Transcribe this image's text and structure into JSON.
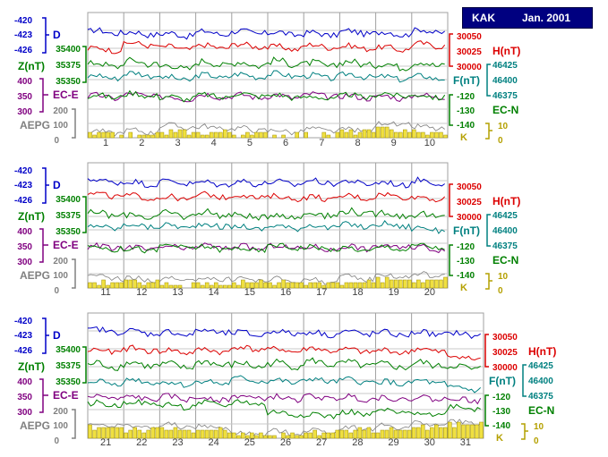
{
  "station": "KAK",
  "period": "Jan. 2001",
  "labels": {
    "d": "D",
    "h": "H(nT)",
    "z": "Z(nT)",
    "f": "F(nT)",
    "ece": "EC-E",
    "ecn": "EC-N",
    "aepg": "AEPG",
    "k": "K"
  },
  "colors": {
    "d": "#0000c8",
    "h": "#dc0000",
    "z": "#008000",
    "f": "#008080",
    "ece": "#800080",
    "ecn": "#008000",
    "aepg": "#808080",
    "k": "#b4a000",
    "kbar": "#f0e040",
    "grid": "#a0a0a0"
  },
  "chart_data": [
    {
      "type": "line",
      "days": [
        "1",
        "2",
        "3",
        "4",
        "5",
        "6",
        "7",
        "8",
        "9",
        "10"
      ],
      "left_axes": {
        "d": [
          "-420",
          "-423",
          "-426"
        ],
        "z": [
          "35400",
          "35375",
          "35350"
        ],
        "ece": [
          "400",
          "350",
          "300"
        ],
        "aepg": [
          "200",
          "100",
          "0"
        ]
      },
      "right_axes": {
        "h": [
          "30050",
          "30025",
          "30000"
        ],
        "f": [
          "46425",
          "46400",
          "46375"
        ],
        "ecn": [
          "-120",
          "-130",
          "-140"
        ],
        "k": [
          "10",
          "0"
        ]
      },
      "series": [
        {
          "key": "d",
          "values": [
            -422.6,
            -422.9,
            -423.1,
            -422.8,
            -422.7,
            -422.9,
            -423.0,
            -422.7,
            -422.9,
            -422.5
          ]
        },
        {
          "key": "h",
          "values": [
            30028,
            30036,
            30030,
            30032,
            30034,
            30030,
            30033,
            30031,
            30029,
            30035
          ]
        },
        {
          "key": "z",
          "values": [
            35381,
            35384,
            35378,
            35383,
            35382,
            35384,
            35381,
            35383,
            35380,
            35382
          ]
        },
        {
          "key": "f",
          "values": [
            46408,
            46412,
            46405,
            46409,
            46410,
            46411,
            46408,
            46410,
            46406,
            46407
          ]
        },
        {
          "key": "ece",
          "values": [
            345,
            350,
            342,
            348,
            347,
            346,
            349,
            345,
            343,
            347
          ]
        },
        {
          "key": "ecn",
          "values": [
            -121,
            -120,
            -122,
            -121,
            -120,
            -121,
            -122,
            -121,
            -120,
            -121
          ]
        },
        {
          "key": "aepg",
          "values": [
            40,
            45,
            80,
            70,
            60,
            45,
            55,
            50,
            95,
            70
          ]
        },
        {
          "key": "k",
          "values": [
            1,
            1,
            2,
            2,
            1,
            1,
            1,
            2,
            3,
            2
          ]
        }
      ]
    },
    {
      "type": "line",
      "days": [
        "11",
        "12",
        "13",
        "14",
        "15",
        "16",
        "17",
        "18",
        "19",
        "20"
      ],
      "left_axes": {
        "d": [
          "-420",
          "-423",
          "-426"
        ],
        "z": [
          "35400",
          "35375",
          "35350"
        ],
        "ece": [
          "400",
          "350",
          "300"
        ],
        "aepg": [
          "200",
          "100",
          "0"
        ]
      },
      "right_axes": {
        "h": [
          "30050",
          "30025",
          "30000"
        ],
        "f": [
          "46425",
          "46400",
          "46375"
        ],
        "ecn": [
          "-120",
          "-130",
          "-140"
        ],
        "k": [
          "10",
          "0"
        ]
      },
      "series": [
        {
          "key": "d",
          "values": [
            -422.4,
            -422.8,
            -422.6,
            -422.9,
            -422.7,
            -422.8,
            -422.6,
            -422.7,
            -422.9,
            -422.5
          ]
        },
        {
          "key": "h",
          "values": [
            30035,
            30032,
            30030,
            30034,
            30033,
            30031,
            30030,
            30032,
            30034,
            30030
          ]
        },
        {
          "key": "z",
          "values": [
            35382,
            35380,
            35381,
            35383,
            35379,
            35380,
            35382,
            35384,
            35382,
            35380
          ]
        },
        {
          "key": "f",
          "values": [
            46408,
            46410,
            46409,
            46411,
            46407,
            46408,
            46409,
            46410,
            46411,
            46405
          ]
        },
        {
          "key": "ece",
          "values": [
            344,
            340,
            342,
            346,
            343,
            345,
            341,
            344,
            346,
            342
          ]
        },
        {
          "key": "ecn",
          "values": [
            -122,
            -123,
            -121,
            -122,
            -123,
            -121,
            -122,
            -123,
            -122,
            -121
          ]
        },
        {
          "key": "aepg",
          "values": [
            75,
            60,
            55,
            65,
            60,
            55,
            50,
            70,
            85,
            90
          ]
        },
        {
          "key": "k",
          "values": [
            2,
            2,
            1,
            2,
            2,
            2,
            2,
            2,
            3,
            3
          ]
        }
      ]
    },
    {
      "type": "line",
      "days": [
        "21",
        "22",
        "23",
        "24",
        "25",
        "26",
        "27",
        "28",
        "29",
        "30",
        "31"
      ],
      "left_axes": {
        "d": [
          "-420",
          "-423",
          "-426"
        ],
        "z": [
          "35400",
          "35375",
          "35350"
        ],
        "ece": [
          "400",
          "350",
          "300"
        ],
        "aepg": [
          "200",
          "100",
          "0"
        ]
      },
      "right_axes": {
        "h": [
          "30050",
          "30025",
          "30000"
        ],
        "f": [
          "46425",
          "46400",
          "46375"
        ],
        "ecn": [
          "-120",
          "-130",
          "-140"
        ],
        "k": [
          "10",
          "0"
        ]
      },
      "series": [
        {
          "key": "d",
          "values": [
            -422.3,
            -422.6,
            -422.8,
            -422.5,
            -422.9,
            -422.6,
            -422.8,
            -422.7,
            -422.9,
            -422.8,
            -423.0
          ]
        },
        {
          "key": "h",
          "values": [
            30026,
            30028,
            30025,
            30026,
            30030,
            30027,
            30028,
            30026,
            30025,
            30027,
            30015
          ]
        },
        {
          "key": "z",
          "values": [
            35381,
            35382,
            35380,
            35383,
            35381,
            35382,
            35384,
            35382,
            35380,
            35382,
            35378
          ]
        },
        {
          "key": "f",
          "values": [
            46400,
            46402,
            46398,
            46400,
            46404,
            46401,
            46403,
            46402,
            46399,
            46400,
            46390
          ]
        },
        {
          "key": "ece",
          "values": [
            344,
            342,
            343,
            341,
            345,
            342,
            344,
            343,
            341,
            342,
            338
          ]
        },
        {
          "key": "ecn",
          "values": [
            -126,
            -125,
            -127,
            -126,
            -125,
            -132,
            -133,
            -132,
            -131,
            -132,
            -128
          ]
        },
        {
          "key": "aepg",
          "values": [
            95,
            80,
            85,
            75,
            30,
            40,
            50,
            70,
            80,
            100,
            110
          ]
        },
        {
          "key": "k",
          "values": [
            4,
            3,
            3,
            3,
            1,
            1,
            2,
            3,
            3,
            4,
            5
          ]
        }
      ]
    }
  ]
}
